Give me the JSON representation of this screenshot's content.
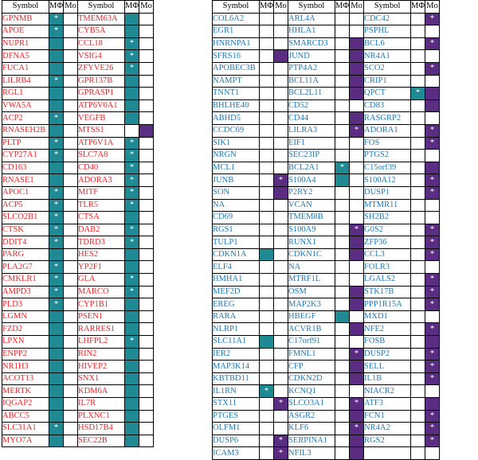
{
  "headers": {
    "symbol": "Symbol",
    "mphi": "MΦ",
    "mo": "Mo"
  },
  "colors": {
    "red_text": "#e8262a",
    "blue_text": "#1f78b4",
    "teal": "#1f8a93",
    "purple": "#5a2d82"
  },
  "groups": [
    {
      "color": "red",
      "columns": [
        {
          "rows": [
            {
              "s": "GPNMB",
              "m": "T*",
              "o": ""
            },
            {
              "s": "APOE",
              "m": "T*",
              "o": ""
            },
            {
              "s": "NUPR1",
              "m": "T",
              "o": ""
            },
            {
              "s": "DFNA5",
              "m": "T",
              "o": ""
            },
            {
              "s": "FUCA1",
              "m": "T",
              "o": ""
            },
            {
              "s": "LILRB4",
              "m": "T*",
              "o": ""
            },
            {
              "s": "RGL1",
              "m": "T",
              "o": ""
            },
            {
              "s": "VWA5A",
              "m": "T",
              "o": ""
            },
            {
              "s": "ACP2",
              "m": "T*",
              "o": ""
            },
            {
              "s": "RNASEH2B",
              "m": "T",
              "o": ""
            },
            {
              "s": "PLTP",
              "m": "T*",
              "o": ""
            },
            {
              "s": "CYP27A1",
              "m": "T*",
              "o": ""
            },
            {
              "s": "CD163",
              "m": "T",
              "o": ""
            },
            {
              "s": "RNASE1",
              "m": "T",
              "o": ""
            },
            {
              "s": "APOC1",
              "m": "T*",
              "o": ""
            },
            {
              "s": "ACP5",
              "m": "T*",
              "o": ""
            },
            {
              "s": "SLCO2B1",
              "m": "T*",
              "o": ""
            },
            {
              "s": "CTSK",
              "m": "T*",
              "o": ""
            },
            {
              "s": "DDIT4",
              "m": "T*",
              "o": ""
            },
            {
              "s": "PARG",
              "m": "T",
              "o": ""
            },
            {
              "s": "PLA2G7",
              "m": "T*",
              "o": ""
            },
            {
              "s": "CMKLR1",
              "m": "T*",
              "o": ""
            },
            {
              "s": "AMPD3",
              "m": "T*",
              "o": ""
            },
            {
              "s": "PLD3",
              "m": "T*",
              "o": ""
            },
            {
              "s": "LGMN",
              "m": "T",
              "o": ""
            },
            {
              "s": "FZD2",
              "m": "T",
              "o": ""
            },
            {
              "s": "LPXN",
              "m": "T",
              "o": ""
            },
            {
              "s": "ENPP2",
              "m": "T",
              "o": ""
            },
            {
              "s": "NR1H3",
              "m": "T",
              "o": ""
            },
            {
              "s": "ACOT13",
              "m": "T",
              "o": ""
            },
            {
              "s": "MERTK",
              "m": "T",
              "o": ""
            },
            {
              "s": "IQGAP2",
              "m": "T",
              "o": ""
            },
            {
              "s": "ABCC5",
              "m": "T",
              "o": ""
            },
            {
              "s": "SLC31A1",
              "m": "T*",
              "o": ""
            },
            {
              "s": "MYO7A",
              "m": "T",
              "o": ""
            }
          ]
        },
        {
          "rows": [
            {
              "s": "TMEM63A",
              "m": "T",
              "o": ""
            },
            {
              "s": "CYB5A",
              "m": "T",
              "o": ""
            },
            {
              "s": "CCL18",
              "m": "T*",
              "o": ""
            },
            {
              "s": "VSIG4",
              "m": "T*",
              "o": ""
            },
            {
              "s": "ZFYVE26",
              "m": "T*",
              "o": ""
            },
            {
              "s": "GPR137B",
              "m": "T",
              "o": ""
            },
            {
              "s": "GPRASP1",
              "m": "T",
              "o": ""
            },
            {
              "s": "ATP6V0A1",
              "m": "T",
              "o": ""
            },
            {
              "s": "VEGFB",
              "m": "T",
              "o": ""
            },
            {
              "s": "MTSS1",
              "m": "",
              "o": "P"
            },
            {
              "s": "ATP6V1A",
              "m": "T*",
              "o": ""
            },
            {
              "s": "SLC7A8",
              "m": "T*",
              "o": ""
            },
            {
              "s": "CD40",
              "m": "T*",
              "o": ""
            },
            {
              "s": "ADORA3",
              "m": "T*",
              "o": ""
            },
            {
              "s": "MITF",
              "m": "T*",
              "o": ""
            },
            {
              "s": "TLR5",
              "m": "T*",
              "o": ""
            },
            {
              "s": "CTSA",
              "m": "T",
              "o": ""
            },
            {
              "s": "DAB2",
              "m": "T*",
              "o": ""
            },
            {
              "s": "TDRD3",
              "m": "T*",
              "o": ""
            },
            {
              "s": "HES2",
              "m": "T",
              "o": ""
            },
            {
              "s": "YP2F1",
              "m": "T",
              "o": ""
            },
            {
              "s": "GLA",
              "m": "T*",
              "o": ""
            },
            {
              "s": "MARCO",
              "m": "T*",
              "o": ""
            },
            {
              "s": "CYP1B1",
              "m": "T",
              "o": ""
            },
            {
              "s": "PSEN1",
              "m": "T",
              "o": ""
            },
            {
              "s": "RARRES1",
              "m": "T",
              "o": ""
            },
            {
              "s": "LHFPL2",
              "m": "T*",
              "o": ""
            },
            {
              "s": "RIN2",
              "m": "T",
              "o": ""
            },
            {
              "s": "HIVEP2",
              "m": "T",
              "o": ""
            },
            {
              "s": "SNX1",
              "m": "T",
              "o": ""
            },
            {
              "s": "KDM6A",
              "m": "T",
              "o": ""
            },
            {
              "s": "IL7R",
              "m": "T",
              "o": ""
            },
            {
              "s": "PLXNC1",
              "m": "T",
              "o": ""
            },
            {
              "s": "HSD17B4",
              "m": "T",
              "o": ""
            },
            {
              "s": "SEC22B",
              "m": "T",
              "o": ""
            }
          ]
        }
      ]
    },
    {
      "color": "blue",
      "columns": [
        {
          "rows": [
            {
              "s": "COL6A2",
              "m": "",
              "o": ""
            },
            {
              "s": "EGR1",
              "m": "",
              "o": ""
            },
            {
              "s": "HNRNPA1",
              "m": "",
              "o": ""
            },
            {
              "s": "SFRS16",
              "m": "",
              "o": "P"
            },
            {
              "s": "APOBEC3B",
              "m": "",
              "o": ""
            },
            {
              "s": "NAMPT",
              "m": "",
              "o": ""
            },
            {
              "s": "TNNT1",
              "m": "",
              "o": ""
            },
            {
              "s": "BHLHE40",
              "m": "",
              "o": ""
            },
            {
              "s": "ABHD5",
              "m": "",
              "o": ""
            },
            {
              "s": "CCDC69",
              "m": "",
              "o": ""
            },
            {
              "s": "SIK1",
              "m": "",
              "o": ""
            },
            {
              "s": "NRGN",
              "m": "",
              "o": ""
            },
            {
              "s": "MCL1",
              "m": "",
              "o": ""
            },
            {
              "s": "JUNB",
              "m": "",
              "o": "P*"
            },
            {
              "s": "SON",
              "m": "",
              "o": "P"
            },
            {
              "s": "NA",
              "m": "",
              "o": ""
            },
            {
              "s": "CD69",
              "m": "",
              "o": ""
            },
            {
              "s": "RGS1",
              "m": "",
              "o": ""
            },
            {
              "s": "TULP1",
              "m": "",
              "o": ""
            },
            {
              "s": "CDKN1A",
              "m": "T",
              "o": ""
            },
            {
              "s": "ELF4",
              "m": "",
              "o": ""
            },
            {
              "s": "HMHA1",
              "m": "",
              "o": ""
            },
            {
              "s": "MEF2D",
              "m": "",
              "o": ""
            },
            {
              "s": "EREG",
              "m": "",
              "o": ""
            },
            {
              "s": "RARA",
              "m": "",
              "o": ""
            },
            {
              "s": "NLRP1",
              "m": "",
              "o": ""
            },
            {
              "s": "SLC11A1",
              "m": "T",
              "o": ""
            },
            {
              "s": "IER2",
              "m": "",
              "o": ""
            },
            {
              "s": "MAP3K14",
              "m": "",
              "o": ""
            },
            {
              "s": "KBTBD11",
              "m": "",
              "o": ""
            },
            {
              "s": "IL1RN",
              "m": "T*",
              "o": ""
            },
            {
              "s": "STX11",
              "m": "",
              "o": "P*"
            },
            {
              "s": "PTGES",
              "m": "",
              "o": ""
            },
            {
              "s": "OLFM1",
              "m": "",
              "o": ""
            },
            {
              "s": "DUSP6",
              "m": "",
              "o": "P*"
            },
            {
              "s": "ICAM3",
              "m": "",
              "o": "P*"
            }
          ]
        },
        {
          "rows": [
            {
              "s": "ARL4A",
              "m": "",
              "o": ""
            },
            {
              "s": "HHLA1",
              "m": "",
              "o": ""
            },
            {
              "s": "SMARCD3",
              "m": "",
              "o": "P"
            },
            {
              "s": "JUND",
              "m": "",
              "o": "P"
            },
            {
              "s": "PTP4A2",
              "m": "",
              "o": "P"
            },
            {
              "s": "BCL11A",
              "m": "",
              "o": "P"
            },
            {
              "s": "BCL2L11",
              "m": "",
              "o": "P"
            },
            {
              "s": "CD52",
              "m": "",
              "o": ""
            },
            {
              "s": "CD44",
              "m": "",
              "o": "P"
            },
            {
              "s": "LILRA3",
              "m": "",
              "o": "P*"
            },
            {
              "s": "EIF1",
              "m": "",
              "o": ""
            },
            {
              "s": "SEC23IP",
              "m": "",
              "o": ""
            },
            {
              "s": "BCL2A1",
              "m": "T*",
              "o": ""
            },
            {
              "s": "S100A4",
              "m": "T",
              "o": ""
            },
            {
              "s": "P2RY2",
              "m": "",
              "o": ""
            },
            {
              "s": "VCAN",
              "m": "",
              "o": ""
            },
            {
              "s": "TMEM8B",
              "m": "",
              "o": ""
            },
            {
              "s": "S100A9",
              "m": "",
              "o": "P*"
            },
            {
              "s": "RUNX1",
              "m": "",
              "o": "P"
            },
            {
              "s": "CDKN1C",
              "m": "",
              "o": "P"
            },
            {
              "s": "NA",
              "m": "",
              "o": ""
            },
            {
              "s": "MTRF1L",
              "m": "",
              "o": ""
            },
            {
              "s": "OSM",
              "m": "",
              "o": "P"
            },
            {
              "s": "MAP2K3",
              "m": "",
              "o": "P"
            },
            {
              "s": "HBEGF",
              "m": "T",
              "o": ""
            },
            {
              "s": "ACVR1B",
              "m": "",
              "o": "P"
            },
            {
              "s": "C17orf91",
              "m": "",
              "o": ""
            },
            {
              "s": "FMNL1",
              "m": "",
              "o": "P*"
            },
            {
              "s": "CFP",
              "m": "",
              "o": "P"
            },
            {
              "s": "CDKN2D",
              "m": "",
              "o": "P"
            },
            {
              "s": "KCNQ1",
              "m": "",
              "o": ""
            },
            {
              "s": "SLCO3A1",
              "m": "",
              "o": "P*"
            },
            {
              "s": "ASGR2",
              "m": "",
              "o": "P"
            },
            {
              "s": "KLF6",
              "m": "",
              "o": "P*"
            },
            {
              "s": "SERPINA1",
              "m": "",
              "o": "P"
            },
            {
              "s": "NFIL3",
              "m": "",
              "o": "P"
            }
          ]
        },
        {
          "rows": [
            {
              "s": "CDC42",
              "m": "",
              "o": "P*"
            },
            {
              "s": "PSPHL",
              "m": "",
              "o": ""
            },
            {
              "s": "BCL6",
              "m": "",
              "o": "P*"
            },
            {
              "s": "NR4A1",
              "m": "",
              "o": ""
            },
            {
              "s": "SCO2",
              "m": "",
              "o": "P*"
            },
            {
              "s": "CRIP1",
              "m": "",
              "o": ""
            },
            {
              "s": "QPCT",
              "m": "T*",
              "o": "P"
            },
            {
              "s": "CD83",
              "m": "",
              "o": "P"
            },
            {
              "s": "RASGRP2",
              "m": "",
              "o": ""
            },
            {
              "s": "ADORA1",
              "m": "",
              "o": "P*"
            },
            {
              "s": "FOS",
              "m": "",
              "o": "P*"
            },
            {
              "s": "PTGS2",
              "m": "",
              "o": ""
            },
            {
              "s": "C15orf39",
              "m": "",
              "o": "P"
            },
            {
              "s": "S100A12",
              "m": "",
              "o": "P*"
            },
            {
              "s": "DUSP1",
              "m": "",
              "o": "P*"
            },
            {
              "s": "MTMR11",
              "m": "",
              "o": ""
            },
            {
              "s": "SH2B2",
              "m": "",
              "o": ""
            },
            {
              "s": "G0S2",
              "m": "",
              "o": "P*"
            },
            {
              "s": "ZFP36",
              "m": "",
              "o": "P*"
            },
            {
              "s": "CCL3",
              "m": "",
              "o": "P*"
            },
            {
              "s": "FOLR3",
              "m": "",
              "o": ""
            },
            {
              "s": "LGALS2",
              "m": "",
              "o": "P*"
            },
            {
              "s": "STK17B",
              "m": "",
              "o": "P*"
            },
            {
              "s": "PPP1R15A",
              "m": "",
              "o": "P*"
            },
            {
              "s": "MXD1",
              "m": "",
              "o": ""
            },
            {
              "s": "NFE2",
              "m": "",
              "o": "P*"
            },
            {
              "s": "FOSB",
              "m": "",
              "o": "P"
            },
            {
              "s": "DUSP2",
              "m": "",
              "o": "P*"
            },
            {
              "s": "SELL",
              "m": "",
              "o": "P*"
            },
            {
              "s": "IL1B",
              "m": "",
              "o": "P*"
            },
            {
              "s": "NIACR2",
              "m": "",
              "o": ""
            },
            {
              "s": "ATF3",
              "m": "",
              "o": "P"
            },
            {
              "s": "FCN1",
              "m": "",
              "o": "P*"
            },
            {
              "s": "NR4A2",
              "m": "",
              "o": "P*"
            },
            {
              "s": "RGS2",
              "m": "",
              "o": "P*"
            }
          ]
        }
      ]
    }
  ]
}
